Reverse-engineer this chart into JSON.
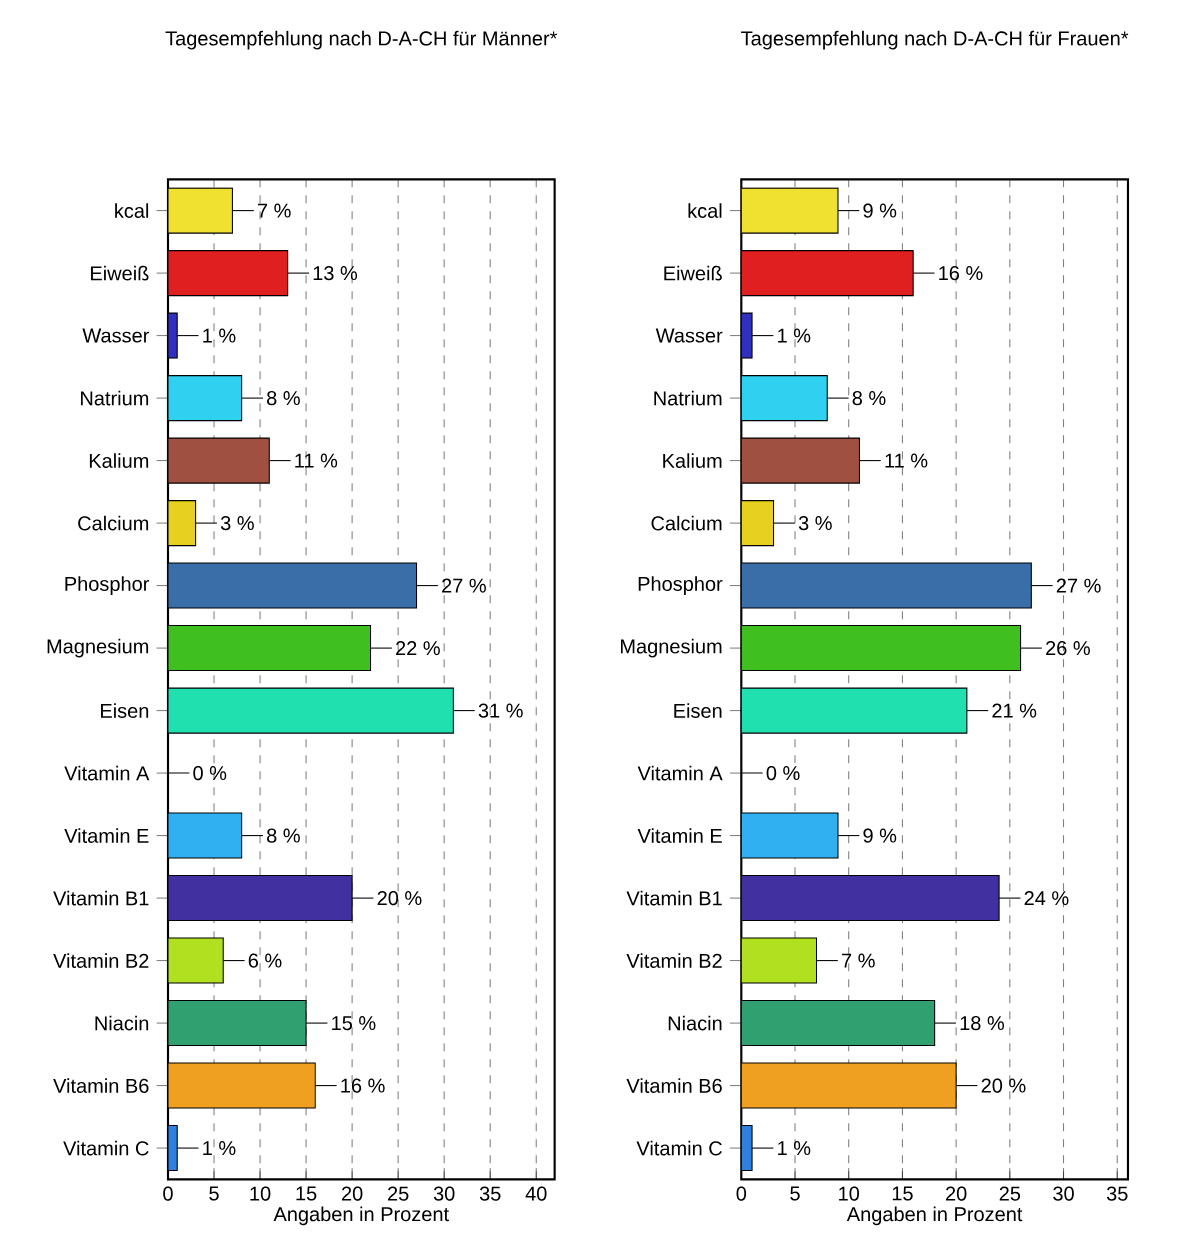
{
  "chart_data": [
    {
      "type": "bar",
      "orientation": "horizontal",
      "title": "Tagesempfehlung nach D-A-CH für Männer*",
      "xlabel": "Angaben in Prozent",
      "categories": [
        "kcal",
        "Eiweiß",
        "Wasser",
        "Natrium",
        "Kalium",
        "Calcium",
        "Phosphor",
        "Magnesium",
        "Eisen",
        "Vitamin A",
        "Vitamin E",
        "Vitamin B1",
        "Vitamin B2",
        "Niacin",
        "Vitamin B6",
        "Vitamin C"
      ],
      "values": [
        7,
        13,
        1,
        8,
        11,
        3,
        27,
        22,
        31,
        0,
        8,
        20,
        6,
        15,
        16,
        1
      ],
      "value_labels": [
        "7 %",
        "13 %",
        "1 %",
        "8 %",
        "11 %",
        "3 %",
        "27 %",
        "22 %",
        "31 %",
        "0 %",
        "8 %",
        "20 %",
        "6 %",
        "15 %",
        "16 %",
        "1 %"
      ],
      "colors": [
        "#f0e030",
        "#e02020",
        "#3030c0",
        "#30d0f0",
        "#a05040",
        "#e8d020",
        "#3a6ea8",
        "#40c020",
        "#20e0b0",
        "#600000",
        "#30b0f0",
        "#4030a0",
        "#b0e020",
        "#30a070",
        "#f0a020",
        "#3080e0"
      ],
      "xlim": [
        0,
        42
      ],
      "xticks": [
        0,
        5,
        10,
        15,
        20,
        25,
        30,
        35,
        40
      ],
      "grid": "x"
    },
    {
      "type": "bar",
      "orientation": "horizontal",
      "title": "Tagesempfehlung nach D-A-CH für Frauen*",
      "xlabel": "Angaben in Prozent",
      "categories": [
        "kcal",
        "Eiweiß",
        "Wasser",
        "Natrium",
        "Kalium",
        "Calcium",
        "Phosphor",
        "Magnesium",
        "Eisen",
        "Vitamin A",
        "Vitamin E",
        "Vitamin B1",
        "Vitamin B2",
        "Niacin",
        "Vitamin B6",
        "Vitamin C"
      ],
      "values": [
        9,
        16,
        1,
        8,
        11,
        3,
        27,
        26,
        21,
        0,
        9,
        24,
        7,
        18,
        20,
        1
      ],
      "value_labels": [
        "9 %",
        "16 %",
        "1 %",
        "8 %",
        "11 %",
        "3 %",
        "27 %",
        "26 %",
        "21 %",
        "0 %",
        "9 %",
        "24 %",
        "7 %",
        "18 %",
        "20 %",
        "1 %"
      ],
      "colors": [
        "#f0e030",
        "#e02020",
        "#3030c0",
        "#30d0f0",
        "#a05040",
        "#e8d020",
        "#3a6ea8",
        "#40c020",
        "#20e0b0",
        "#600000",
        "#30b0f0",
        "#4030a0",
        "#b0e020",
        "#30a070",
        "#f0a020",
        "#3080e0"
      ],
      "xlim": [
        0,
        36
      ],
      "xticks": [
        0,
        5,
        10,
        15,
        20,
        25,
        30,
        35
      ],
      "grid": "x"
    }
  ]
}
